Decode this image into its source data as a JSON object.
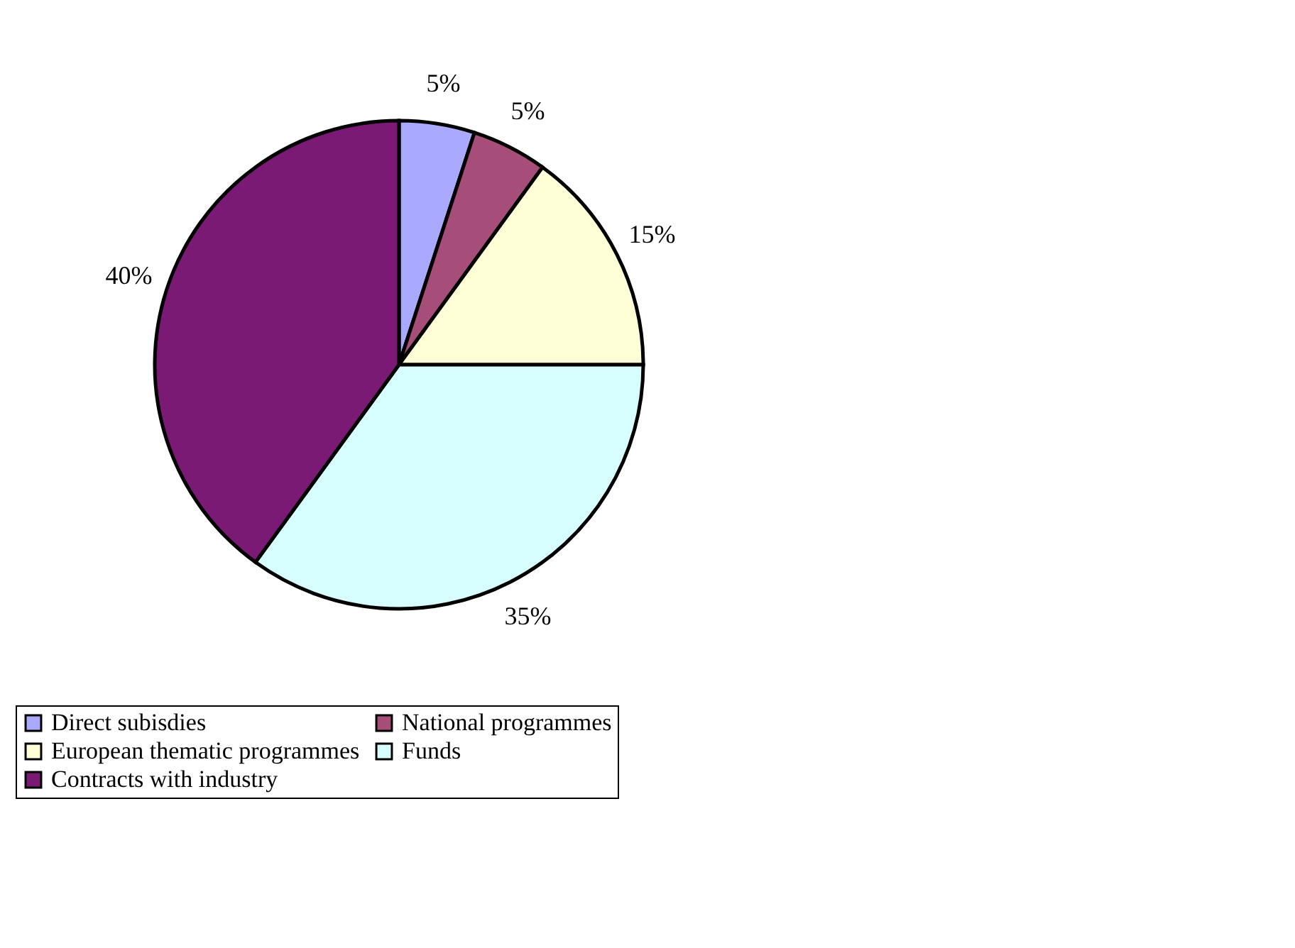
{
  "chart_data": {
    "type": "pie",
    "categories": [
      "Direct subisdies",
      "National programmes",
      "European thematic programmes",
      "Funds",
      "Contracts with industry"
    ],
    "values": [
      5,
      5,
      15,
      35,
      40
    ],
    "colors": [
      "#a9a9fe",
      "#a64d79",
      "#ffffd7",
      "#d7ffff",
      "#7b1a74"
    ],
    "value_labels": [
      "5%",
      "5%",
      "15%",
      "35%",
      "40%"
    ],
    "legend": "bottom"
  }
}
